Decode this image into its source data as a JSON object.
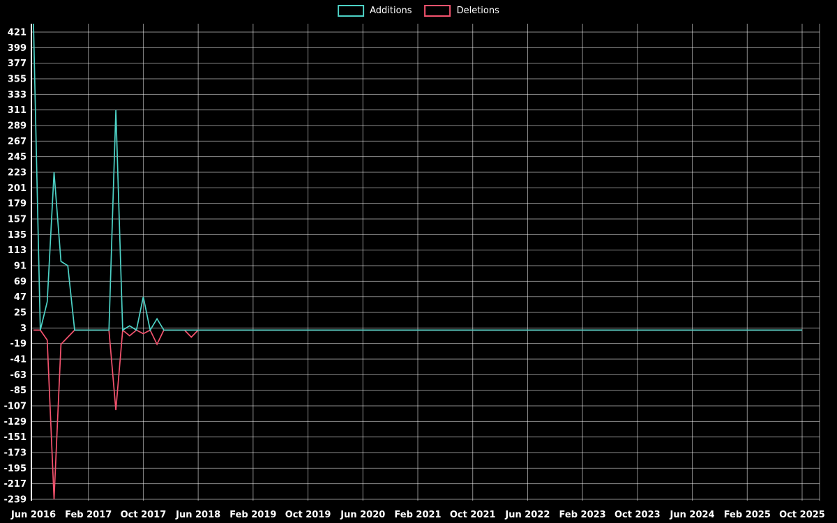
{
  "chart_data": {
    "type": "line",
    "title": "",
    "legend_position": "top-center",
    "grid": true,
    "background": "#000000",
    "grid_color": "rgba(255,255,255,0.55)",
    "axis_color": "#ffffff",
    "text_color": "#ffffff",
    "x_axis": {
      "unit": "month",
      "total_months": 113,
      "tick_month_indices": [
        0,
        8,
        16,
        24,
        32,
        40,
        48,
        56,
        64,
        72,
        80,
        88,
        96,
        104,
        112
      ],
      "tick_labels": [
        "Jun 2016",
        "Feb 2017",
        "Oct 2017",
        "Jun 2018",
        "Feb 2019",
        "Oct 2019",
        "Jun 2020",
        "Feb 2021",
        "Oct 2021",
        "Jun 2022",
        "Feb 2023",
        "Oct 2023",
        "Jun 2024",
        "Feb 2025",
        "Oct 2025"
      ]
    },
    "y_axis": {
      "min": -239,
      "max": 421,
      "step": 22,
      "tick_values": [
        421,
        399,
        377,
        355,
        333,
        311,
        289,
        267,
        245,
        223,
        201,
        179,
        157,
        135,
        113,
        91,
        69,
        47,
        25,
        3,
        -19,
        -41,
        -63,
        -85,
        -107,
        -129,
        -151,
        -173,
        -195,
        -217,
        -239
      ]
    },
    "series": [
      {
        "name": "Additions",
        "color": "#4dd2c6",
        "baseline": 0,
        "points": [
          {
            "month": 0,
            "value": 433
          },
          {
            "month": 2,
            "value": 40
          },
          {
            "month": 3,
            "value": 223
          },
          {
            "month": 4,
            "value": 97
          },
          {
            "month": 5,
            "value": 91
          },
          {
            "month": 12,
            "value": 311
          },
          {
            "month": 14,
            "value": 6
          },
          {
            "month": 16,
            "value": 47
          },
          {
            "month": 18,
            "value": 16
          }
        ]
      },
      {
        "name": "Deletions",
        "color": "#f4536e",
        "baseline": 0,
        "points": [
          {
            "month": 2,
            "value": -14
          },
          {
            "month": 3,
            "value": -239
          },
          {
            "month": 4,
            "value": -20
          },
          {
            "month": 5,
            "value": -10
          },
          {
            "month": 12,
            "value": -113
          },
          {
            "month": 14,
            "value": -8
          },
          {
            "month": 16,
            "value": -5
          },
          {
            "month": 18,
            "value": -20
          },
          {
            "month": 23,
            "value": -10
          }
        ]
      }
    ]
  }
}
